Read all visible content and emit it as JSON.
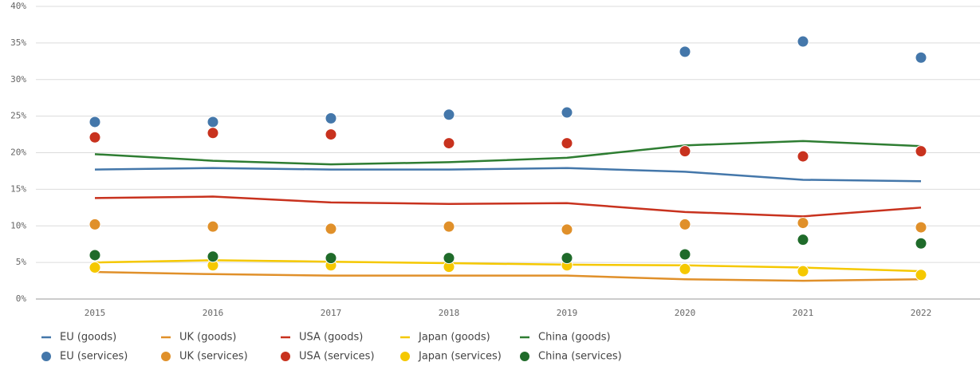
{
  "chart_data": {
    "type": "line",
    "categories": [
      "2015",
      "2016",
      "2017",
      "2018",
      "2019",
      "2020",
      "2021",
      "2022"
    ],
    "ylim": [
      0,
      40
    ],
    "yticks": [
      {
        "value": 0,
        "label": "0%"
      },
      {
        "value": 5,
        "label": "5%"
      },
      {
        "value": 10,
        "label": "10%"
      },
      {
        "value": 15,
        "label": "15%"
      },
      {
        "value": 20,
        "label": "20%"
      },
      {
        "value": 25,
        "label": "25%"
      },
      {
        "value": 30,
        "label": "30%"
      },
      {
        "value": 35,
        "label": "35%"
      },
      {
        "value": 40,
        "label": "40%"
      }
    ],
    "grid": true,
    "legend": "bottom",
    "series": [
      {
        "name": "EU (goods)",
        "type": "line",
        "color": "#4477aa",
        "values": [
          17.7,
          17.9,
          17.7,
          17.7,
          17.9,
          17.4,
          16.3,
          16.1
        ]
      },
      {
        "name": "UK (goods)",
        "type": "line",
        "color": "#e0902a",
        "values": [
          3.7,
          3.4,
          3.2,
          3.2,
          3.2,
          2.7,
          2.5,
          2.7
        ]
      },
      {
        "name": "USA (goods)",
        "type": "line",
        "color": "#c8321e",
        "values": [
          13.8,
          14.0,
          13.2,
          13.0,
          13.1,
          11.9,
          11.3,
          12.5
        ]
      },
      {
        "name": "Japan (goods)",
        "type": "line",
        "color": "#f5c800",
        "values": [
          5.0,
          5.3,
          5.1,
          4.9,
          4.7,
          4.6,
          4.3,
          3.8
        ]
      },
      {
        "name": "China (goods)",
        "type": "line",
        "color": "#2e7d32",
        "values": [
          19.8,
          18.9,
          18.4,
          18.7,
          19.3,
          21.0,
          21.6,
          20.9
        ]
      },
      {
        "name": "EU (services)",
        "type": "scatter",
        "color": "#4477aa",
        "values": [
          24.2,
          24.2,
          24.7,
          25.2,
          25.5,
          33.8,
          35.2,
          33.0
        ]
      },
      {
        "name": "UK (services)",
        "type": "scatter",
        "color": "#e0902a",
        "values": [
          10.2,
          9.9,
          9.6,
          9.9,
          9.5,
          10.2,
          10.4,
          9.8
        ]
      },
      {
        "name": "USA (services)",
        "type": "scatter",
        "color": "#c8321e",
        "values": [
          22.1,
          22.7,
          22.5,
          21.3,
          21.3,
          20.2,
          19.5,
          20.2
        ]
      },
      {
        "name": "Japan (services)",
        "type": "scatter",
        "color": "#f5c800",
        "values": [
          4.3,
          4.6,
          4.6,
          4.4,
          4.6,
          4.1,
          3.8,
          3.3
        ]
      },
      {
        "name": "China (services)",
        "type": "scatter",
        "color": "#1f6b2a",
        "values": [
          6.0,
          5.8,
          5.6,
          5.6,
          5.6,
          6.1,
          8.1,
          7.6
        ]
      }
    ]
  }
}
